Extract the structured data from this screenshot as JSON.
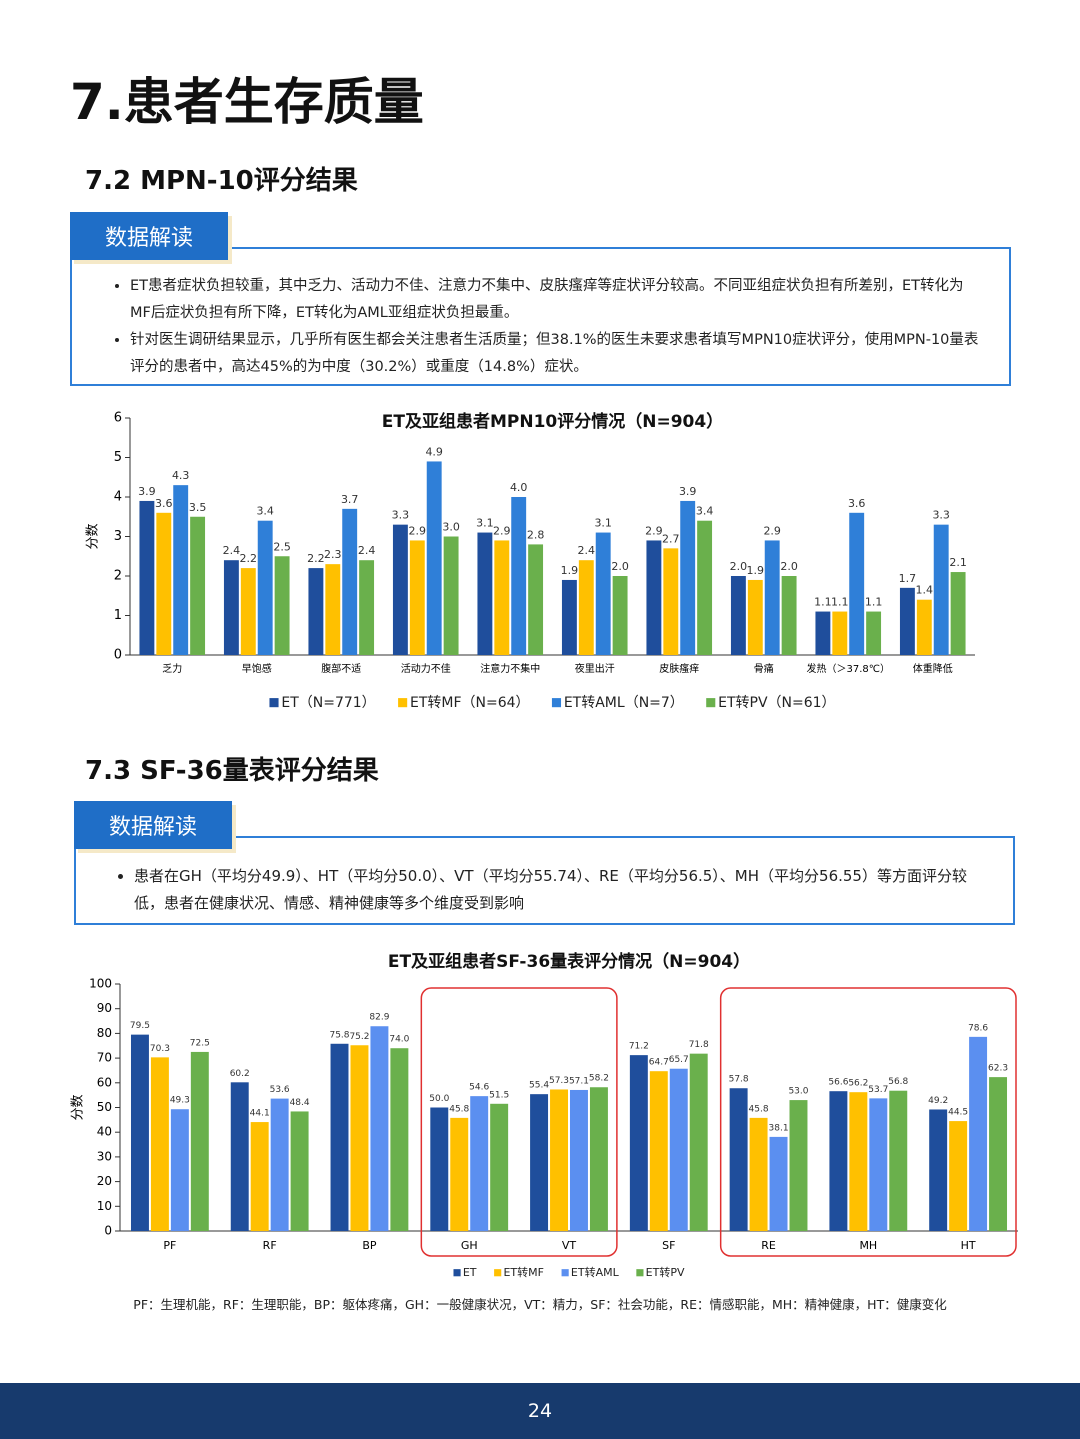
{
  "title": "7.患者生存质量",
  "sections": [
    {
      "heading": "7.2  MPN-10评分结果",
      "tab": "数据解读",
      "bullets": [
        "ET患者症状负担较重，其中乏力、活动力不佳、注意力不集中、皮肤瘙痒等症状评分较高。不同亚组症状负担有所差别，ET转化为MF后症状负担有所下降，ET转化为AML亚组症状负担最重。",
        "针对医生调研结果显示，几乎所有医生都会关注患者生活质量；但38.1%的医生未要求患者填写MPN10症状评分，使用MPN-10量表评分的患者中，高达45%的为中度（30.2%）或重度（14.8%）症状。"
      ]
    },
    {
      "heading": "7.3  SF-36量表评分结果",
      "tab": "数据解读",
      "bullets": [
        "患者在GH（平均分49.9）、HT（平均分50.0）、VT（平均分55.74）、RE（平均分56.5）、MH（平均分56.55）等方面评分较低，患者在健康状况、情感、精神健康等多个维度受到影响"
      ]
    }
  ],
  "chart_data": [
    {
      "type": "bar",
      "title": "ET及亚组患者MPN10评分情况（N=904）",
      "y_label": "分数",
      "categories": [
        "乏力",
        "早饱感",
        "腹部不适",
        "活动力不佳",
        "注意力不集中",
        "夜里出汗",
        "皮肤瘙痒",
        "骨痛",
        "发热（＞37.8℃）",
        "体重降低"
      ],
      "series": [
        {
          "name": "ET（N=771）",
          "color": "#1f4e9c",
          "values": [
            3.9,
            2.4,
            2.2,
            3.3,
            3.1,
            1.9,
            2.9,
            2.0,
            1.1,
            1.7
          ],
          "value_labels": [
            "3.9",
            "2.4",
            "2.2",
            "3.3",
            "3.1",
            "1.9",
            "2.9",
            "2.0",
            "1.1",
            "1.7"
          ]
        },
        {
          "name": "ET转MF（N=64）",
          "color": "#ffc000",
          "values": [
            3.6,
            2.2,
            2.3,
            2.9,
            2.9,
            2.4,
            2.7,
            1.9,
            1.1,
            1.4
          ],
          "value_labels": [
            "3.6",
            "2.2",
            "2.3",
            "2.9",
            "2.9",
            "2.4",
            "2.7",
            "1.9",
            "1.1",
            "1.4"
          ]
        },
        {
          "name": "ET转AML（N=7）",
          "color": "#2f7fd8",
          "values": [
            4.3,
            3.4,
            3.7,
            4.9,
            4.0,
            3.1,
            3.9,
            2.9,
            3.6,
            3.3
          ],
          "value_labels": [
            "4.3",
            "3.4",
            "3.7",
            "4.9",
            "4.0",
            "3.1",
            "3.9",
            "2.9",
            "3.6",
            "3.3"
          ]
        },
        {
          "name": "ET转PV（N=61）",
          "color": "#6ab04c",
          "values": [
            3.5,
            2.5,
            2.4,
            3.0,
            2.8,
            2.0,
            3.4,
            2.0,
            1.1,
            2.1
          ],
          "value_labels": [
            "3.5",
            "2.5",
            "2.4",
            "3.0",
            "2.8",
            "2.0",
            "3.4",
            "2.0",
            "1.1",
            "2.1"
          ]
        }
      ],
      "ylim": [
        0,
        6
      ],
      "yticks": [
        0,
        1,
        2,
        3,
        4,
        5,
        6
      ],
      "grid": false
    },
    {
      "type": "bar",
      "title": "ET及亚组患者SF-36量表评分情况（N=904）",
      "y_label": "分数",
      "categories": [
        "PF",
        "RF",
        "BP",
        "GH",
        "VT",
        "SF",
        "RE",
        "MH",
        "HT"
      ],
      "series": [
        {
          "name": "ET",
          "color": "#1f4e9c",
          "values": [
            79.5,
            60.2,
            75.8,
            50.0,
            55.4,
            71.2,
            57.8,
            56.6,
            49.2
          ],
          "value_labels": [
            "79.5",
            "60.2",
            "75.8",
            "50.0",
            "55.4",
            "71.2",
            "57.8",
            "56.6",
            "49.2"
          ]
        },
        {
          "name": "ET转MF",
          "color": "#ffc000",
          "values": [
            70.3,
            44.1,
            75.2,
            45.8,
            57.3,
            64.7,
            45.8,
            56.2,
            44.5
          ],
          "value_labels": [
            "70.3",
            "44.1",
            "75.2",
            "45.8",
            "57.3",
            "64.7",
            "45.8",
            "56.2",
            "44.5"
          ]
        },
        {
          "name": "ET转AML",
          "color": "#5b8ff0",
          "values": [
            49.3,
            53.6,
            82.9,
            54.6,
            57.1,
            65.7,
            38.1,
            53.7,
            78.6
          ],
          "value_labels": [
            "49.3",
            "53.6",
            "82.9",
            "54.6",
            "57.1",
            "65.7",
            "38.1",
            "53.7",
            "78.6"
          ]
        },
        {
          "name": "ET转PV",
          "color": "#6ab04c",
          "values": [
            72.5,
            48.4,
            74.0,
            51.5,
            58.2,
            71.8,
            53.0,
            56.8,
            62.3
          ],
          "value_labels": [
            "72.5",
            "48.4",
            "74.0",
            "51.5",
            "58.2",
            "71.8",
            "53.0",
            "56.8",
            "62.3"
          ]
        }
      ],
      "ylim": [
        0,
        100
      ],
      "yticks": [
        0,
        10,
        20,
        30,
        40,
        50,
        60,
        70,
        80,
        90,
        100
      ],
      "grid": false
    }
  ],
  "footnote": "PF：生理机能，RF：生理职能，BP：躯体疼痛，GH：一般健康状况，VT：精力，SF：社会功能，RE：情感职能，MH：精神健康，HT：健康变化",
  "page_number": "24"
}
